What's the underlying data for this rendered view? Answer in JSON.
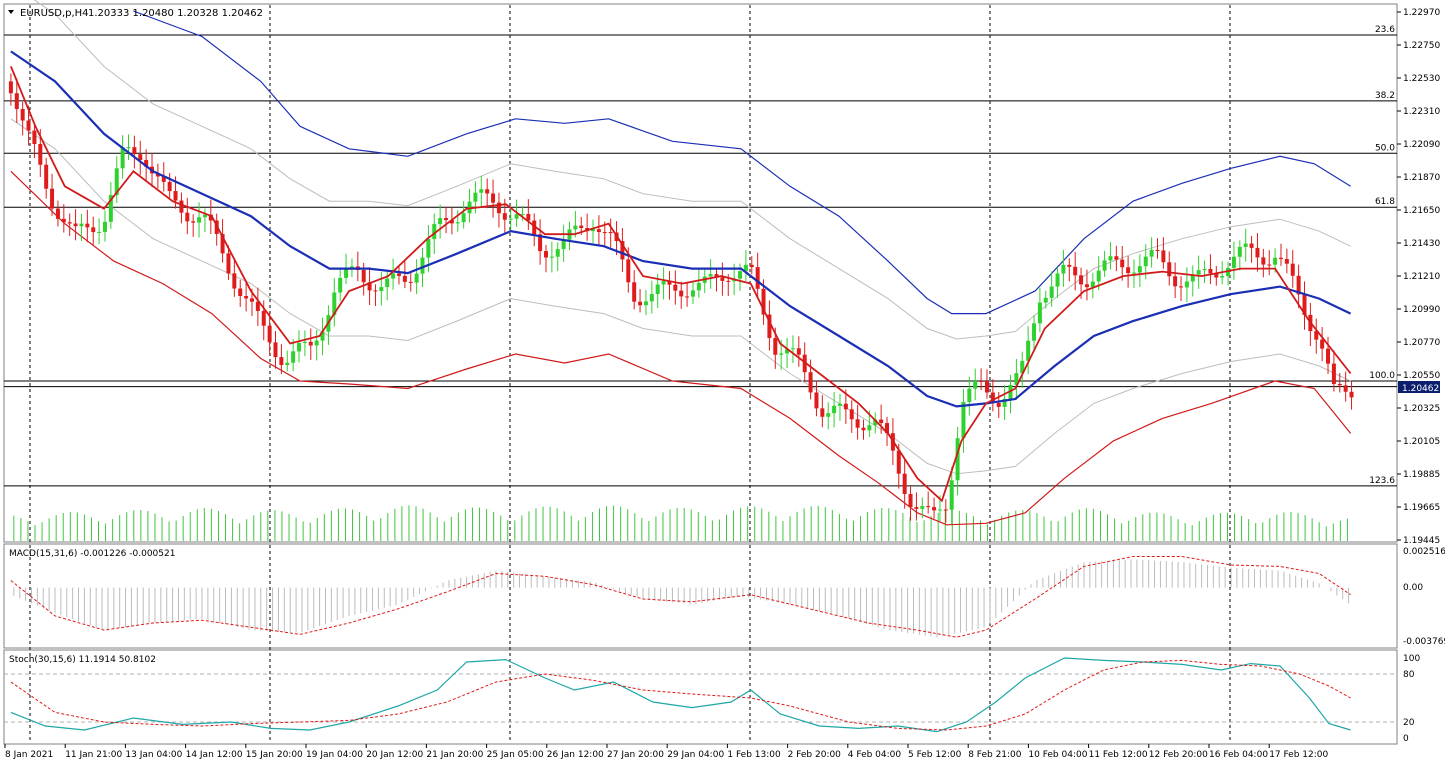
{
  "header": {
    "symbol": "EURUSD,p,H4",
    "ohlc": "1.20333 1.20480 1.20328 1.20462"
  },
  "colors": {
    "bull": "#2fd12f",
    "bear": "#e01b1b",
    "ma_blue": "#1a2fb5",
    "ma_red": "#d11a1a",
    "envelope": "#bdbdbd",
    "grid": "#000000",
    "volume": "#3fc63f",
    "macd_hist": "#bcbcbc",
    "signal": "#e01b1b",
    "stoch_main": "#1fa7a7"
  },
  "price_axis": {
    "labels": [
      "1.22970",
      "1.22750",
      "1.22530",
      "1.22310",
      "1.22090",
      "1.21870",
      "1.21650",
      "1.21430",
      "1.21210",
      "1.20990",
      "1.20770",
      "1.20550",
      "1.20325",
      "1.20105",
      "1.19885",
      "1.19665",
      "1.19445"
    ],
    "current_price": "1.20462"
  },
  "fib_levels": [
    {
      "label": "23.6",
      "price": 1.2281
    },
    {
      "label": "38.2",
      "price": 1.2237
    },
    {
      "label": "50.0",
      "price": 1.2202
    },
    {
      "label": "61.8",
      "price": 1.2166
    },
    {
      "label": "100.0",
      "price": 1.205
    },
    {
      "label": "123.6",
      "price": 1.198
    }
  ],
  "time_axis": [
    "8 Jan 2021",
    "11 Jan 21:00",
    "13 Jan 04:00",
    "14 Jan 12:00",
    "15 Jan 20:00",
    "19 Jan 04:00",
    "20 Jan 12:00",
    "21 Jan 20:00",
    "25 Jan 05:00",
    "26 Jan 12:00",
    "27 Jan 20:00",
    "29 Jan 04:00",
    "1 Feb 13:00",
    "2 Feb 20:00",
    "4 Feb 04:00",
    "5 Feb 12:00",
    "8 Feb 21:00",
    "10 Feb 04:00",
    "11 Feb 12:00",
    "12 Feb 20:00",
    "16 Feb 04:00",
    "17 Feb 12:00"
  ],
  "macd": {
    "label": "MACD(15,31,6) -0.001226 -0.000521",
    "axis": [
      "0.002516",
      "0.00",
      "-0.003769"
    ]
  },
  "stoch": {
    "label": "Stoch(30,15,6) 11.1914 50.8102",
    "axis": [
      "100",
      "80",
      "20",
      "0"
    ]
  },
  "chart_data": {
    "type": "candlestick",
    "x_range": [
      0,
      1400
    ],
    "price_range": [
      1.19445,
      1.2297
    ],
    "close_keypoints": [
      [
        5,
        1.225
      ],
      [
        20,
        1.2215
      ],
      [
        45,
        1.2175
      ],
      [
        70,
        1.2145
      ],
      [
        100,
        1.216
      ],
      [
        120,
        1.22
      ],
      [
        140,
        1.2205
      ],
      [
        165,
        1.217
      ],
      [
        200,
        1.216
      ],
      [
        225,
        1.213
      ],
      [
        260,
        1.2085
      ],
      [
        285,
        1.2065
      ],
      [
        310,
        1.207
      ],
      [
        335,
        1.211
      ],
      [
        360,
        1.2125
      ],
      [
        385,
        1.211
      ],
      [
        410,
        1.212
      ],
      [
        440,
        1.215
      ],
      [
        470,
        1.217
      ],
      [
        500,
        1.217
      ],
      [
        520,
        1.216
      ],
      [
        545,
        1.214
      ],
      [
        570,
        1.214
      ],
      [
        600,
        1.216
      ],
      [
        620,
        1.214
      ],
      [
        640,
        1.211
      ],
      [
        660,
        1.2105
      ],
      [
        685,
        1.2115
      ],
      [
        710,
        1.211
      ],
      [
        735,
        1.2125
      ],
      [
        760,
        1.212
      ],
      [
        785,
        1.2075
      ],
      [
        810,
        1.206
      ],
      [
        835,
        1.203
      ],
      [
        860,
        1.2025
      ],
      [
        885,
        1.2025
      ],
      [
        905,
        1.2
      ],
      [
        925,
        1.197
      ],
      [
        945,
        1.1955
      ],
      [
        960,
        1.197
      ],
      [
        975,
        1.2035
      ],
      [
        995,
        1.2045
      ],
      [
        1015,
        1.204
      ],
      [
        1035,
        1.205
      ],
      [
        1055,
        1.211
      ],
      [
        1080,
        1.212
      ],
      [
        1100,
        1.212
      ],
      [
        1125,
        1.2125
      ],
      [
        1150,
        1.213
      ],
      [
        1175,
        1.213
      ],
      [
        1195,
        1.212
      ],
      [
        1215,
        1.2115
      ],
      [
        1245,
        1.213
      ],
      [
        1270,
        1.2135
      ],
      [
        1295,
        1.2135
      ],
      [
        1320,
        1.2105
      ],
      [
        1340,
        1.208
      ],
      [
        1355,
        1.204
      ],
      [
        1375,
        1.2046
      ]
    ],
    "ma_blue_keypoints": [
      [
        5,
        1.227
      ],
      [
        50,
        1.225
      ],
      [
        100,
        1.2215
      ],
      [
        150,
        1.219
      ],
      [
        200,
        1.2175
      ],
      [
        250,
        1.216
      ],
      [
        290,
        1.214
      ],
      [
        330,
        1.2125
      ],
      [
        370,
        1.2125
      ],
      [
        410,
        1.2122
      ],
      [
        460,
        1.2135
      ],
      [
        515,
        1.215
      ],
      [
        560,
        1.2145
      ],
      [
        610,
        1.214
      ],
      [
        650,
        1.213
      ],
      [
        700,
        1.2125
      ],
      [
        750,
        1.2125
      ],
      [
        800,
        1.21
      ],
      [
        850,
        1.208
      ],
      [
        900,
        1.206
      ],
      [
        940,
        1.204
      ],
      [
        970,
        1.2033
      ],
      [
        1000,
        1.2035
      ],
      [
        1030,
        1.2038
      ],
      [
        1070,
        1.206
      ],
      [
        1110,
        1.208
      ],
      [
        1150,
        1.209
      ],
      [
        1200,
        1.21
      ],
      [
        1250,
        1.2108
      ],
      [
        1300,
        1.2113
      ],
      [
        1340,
        1.2105
      ],
      [
        1372,
        1.2095
      ]
    ],
    "ma_red_keypoints": [
      [
        5,
        1.226
      ],
      [
        30,
        1.222
      ],
      [
        60,
        1.218
      ],
      [
        100,
        1.2165
      ],
      [
        130,
        1.219
      ],
      [
        170,
        1.217
      ],
      [
        210,
        1.216
      ],
      [
        250,
        1.211
      ],
      [
        290,
        1.2075
      ],
      [
        320,
        1.208
      ],
      [
        350,
        1.211
      ],
      [
        390,
        1.212
      ],
      [
        430,
        1.2145
      ],
      [
        470,
        1.2165
      ],
      [
        510,
        1.2168
      ],
      [
        550,
        1.2148
      ],
      [
        580,
        1.2148
      ],
      [
        615,
        1.2155
      ],
      [
        650,
        1.212
      ],
      [
        690,
        1.2115
      ],
      [
        730,
        1.212
      ],
      [
        760,
        1.2115
      ],
      [
        790,
        1.2075
      ],
      [
        830,
        1.2055
      ],
      [
        870,
        1.2035
      ],
      [
        900,
        1.2015
      ],
      [
        930,
        1.1985
      ],
      [
        955,
        1.197
      ],
      [
        975,
        1.201
      ],
      [
        1000,
        1.2035
      ],
      [
        1030,
        1.2045
      ],
      [
        1060,
        1.2085
      ],
      [
        1100,
        1.211
      ],
      [
        1140,
        1.212
      ],
      [
        1180,
        1.2123
      ],
      [
        1220,
        1.212
      ],
      [
        1260,
        1.2125
      ],
      [
        1295,
        1.2125
      ],
      [
        1330,
        1.209
      ],
      [
        1372,
        1.2055
      ]
    ],
    "upper_band_keypoints": [
      [
        130,
        1.2297
      ],
      [
        200,
        1.228
      ],
      [
        260,
        1.225
      ],
      [
        300,
        1.222
      ],
      [
        350,
        1.2205
      ],
      [
        410,
        1.22
      ],
      [
        470,
        1.2215
      ],
      [
        520,
        1.2225
      ],
      [
        570,
        1.2222
      ],
      [
        615,
        1.2225
      ],
      [
        680,
        1.221
      ],
      [
        750,
        1.2205
      ],
      [
        800,
        1.218
      ],
      [
        850,
        1.216
      ],
      [
        900,
        1.213
      ],
      [
        940,
        1.2105
      ],
      [
        965,
        1.2095
      ],
      [
        1000,
        1.2095
      ],
      [
        1050,
        1.211
      ],
      [
        1100,
        1.2145
      ],
      [
        1150,
        1.217
      ],
      [
        1200,
        1.2182
      ],
      [
        1250,
        1.2192
      ],
      [
        1300,
        1.22
      ],
      [
        1335,
        1.2195
      ],
      [
        1372,
        1.218
      ]
    ],
    "lower_band_keypoints": [
      [
        5,
        1.219
      ],
      [
        60,
        1.2155
      ],
      [
        110,
        1.213
      ],
      [
        160,
        1.2115
      ],
      [
        210,
        1.2095
      ],
      [
        260,
        1.2065
      ],
      [
        300,
        1.205
      ],
      [
        350,
        1.2048
      ],
      [
        410,
        1.2045
      ],
      [
        470,
        1.2058
      ],
      [
        520,
        1.2068
      ],
      [
        570,
        1.2062
      ],
      [
        615,
        1.2068
      ],
      [
        680,
        1.205
      ],
      [
        750,
        1.2045
      ],
      [
        800,
        1.2025
      ],
      [
        850,
        1.2
      ],
      [
        890,
        1.1982
      ],
      [
        930,
        1.1962
      ],
      [
        960,
        1.1954
      ],
      [
        1000,
        1.1955
      ],
      [
        1040,
        1.1962
      ],
      [
        1080,
        1.1985
      ],
      [
        1130,
        1.201
      ],
      [
        1180,
        1.2025
      ],
      [
        1230,
        1.2035
      ],
      [
        1295,
        1.205
      ],
      [
        1335,
        1.2045
      ],
      [
        1372,
        1.2015
      ]
    ],
    "volume_keypoints": [
      [
        5,
        0.45
      ],
      [
        100,
        0.5
      ],
      [
        200,
        0.55
      ],
      [
        300,
        0.5
      ],
      [
        400,
        0.6
      ],
      [
        500,
        0.55
      ],
      [
        600,
        0.6
      ],
      [
        700,
        0.55
      ],
      [
        800,
        0.6
      ],
      [
        900,
        0.55
      ],
      [
        1000,
        0.5
      ],
      [
        1100,
        0.55
      ],
      [
        1200,
        0.45
      ],
      [
        1300,
        0.5
      ],
      [
        1372,
        0.4
      ]
    ],
    "macd_keypoints": [
      [
        5,
        -0.0005
      ],
      [
        50,
        -0.0018
      ],
      [
        100,
        -0.003
      ],
      [
        150,
        -0.0025
      ],
      [
        200,
        -0.0022
      ],
      [
        250,
        -0.003
      ],
      [
        300,
        -0.0032
      ],
      [
        350,
        -0.002
      ],
      [
        400,
        -0.0012
      ],
      [
        450,
        0.0005
      ],
      [
        500,
        0.0012
      ],
      [
        550,
        0.0008
      ],
      [
        600,
        0.0004
      ],
      [
        650,
        -0.0008
      ],
      [
        700,
        -0.0012
      ],
      [
        750,
        -0.0006
      ],
      [
        800,
        -0.0012
      ],
      [
        850,
        -0.002
      ],
      [
        900,
        -0.003
      ],
      [
        950,
        -0.0035
      ],
      [
        1000,
        -0.0028
      ],
      [
        1050,
        0.0005
      ],
      [
        1100,
        0.0018
      ],
      [
        1150,
        0.002
      ],
      [
        1200,
        0.0018
      ],
      [
        1250,
        0.0014
      ],
      [
        1300,
        0.0012
      ],
      [
        1340,
        0.0003
      ],
      [
        1372,
        -0.0012
      ]
    ],
    "signal_keypoints": [
      [
        5,
        0.0005
      ],
      [
        50,
        -0.002
      ],
      [
        100,
        -0.003
      ],
      [
        150,
        -0.0025
      ],
      [
        200,
        -0.0023
      ],
      [
        250,
        -0.0028
      ],
      [
        300,
        -0.0033
      ],
      [
        350,
        -0.0025
      ],
      [
        400,
        -0.0015
      ],
      [
        450,
        -0.0003
      ],
      [
        500,
        0.001
      ],
      [
        550,
        0.0008
      ],
      [
        600,
        0.0002
      ],
      [
        650,
        -0.0008
      ],
      [
        700,
        -0.001
      ],
      [
        760,
        -0.0005
      ],
      [
        820,
        -0.0015
      ],
      [
        880,
        -0.0025
      ],
      [
        930,
        -0.003
      ],
      [
        970,
        -0.0035
      ],
      [
        1000,
        -0.003
      ],
      [
        1050,
        -0.0008
      ],
      [
        1100,
        0.0015
      ],
      [
        1150,
        0.0022
      ],
      [
        1200,
        0.0022
      ],
      [
        1250,
        0.0016
      ],
      [
        1300,
        0.0015
      ],
      [
        1340,
        0.001
      ],
      [
        1372,
        -0.0005
      ]
    ],
    "stoch_main_keypoints": [
      [
        5,
        32
      ],
      [
        40,
        15
      ],
      [
        80,
        10
      ],
      [
        130,
        25
      ],
      [
        180,
        17
      ],
      [
        230,
        20
      ],
      [
        270,
        12
      ],
      [
        310,
        10
      ],
      [
        350,
        20
      ],
      [
        400,
        40
      ],
      [
        440,
        60
      ],
      [
        470,
        95
      ],
      [
        510,
        98
      ],
      [
        550,
        75
      ],
      [
        580,
        60
      ],
      [
        620,
        70
      ],
      [
        660,
        45
      ],
      [
        700,
        38
      ],
      [
        740,
        45
      ],
      [
        760,
        60
      ],
      [
        790,
        30
      ],
      [
        830,
        15
      ],
      [
        870,
        12
      ],
      [
        910,
        15
      ],
      [
        950,
        8
      ],
      [
        980,
        20
      ],
      [
        1010,
        45
      ],
      [
        1040,
        75
      ],
      [
        1080,
        100
      ],
      [
        1120,
        97
      ],
      [
        1160,
        95
      ],
      [
        1200,
        92
      ],
      [
        1240,
        85
      ],
      [
        1270,
        93
      ],
      [
        1300,
        90
      ],
      [
        1330,
        50
      ],
      [
        1350,
        18
      ],
      [
        1372,
        10
      ]
    ],
    "stoch_signal_keypoints": [
      [
        5,
        70
      ],
      [
        50,
        32
      ],
      [
        100,
        20
      ],
      [
        150,
        17
      ],
      [
        200,
        15
      ],
      [
        250,
        18
      ],
      [
        300,
        20
      ],
      [
        350,
        22
      ],
      [
        400,
        30
      ],
      [
        450,
        45
      ],
      [
        500,
        70
      ],
      [
        550,
        80
      ],
      [
        600,
        72
      ],
      [
        650,
        60
      ],
      [
        700,
        55
      ],
      [
        760,
        50
      ],
      [
        800,
        40
      ],
      [
        860,
        20
      ],
      [
        910,
        12
      ],
      [
        960,
        10
      ],
      [
        1000,
        15
      ],
      [
        1040,
        30
      ],
      [
        1080,
        60
      ],
      [
        1120,
        85
      ],
      [
        1160,
        95
      ],
      [
        1200,
        97
      ],
      [
        1240,
        92
      ],
      [
        1280,
        90
      ],
      [
        1320,
        80
      ],
      [
        1350,
        65
      ],
      [
        1372,
        50
      ]
    ]
  }
}
